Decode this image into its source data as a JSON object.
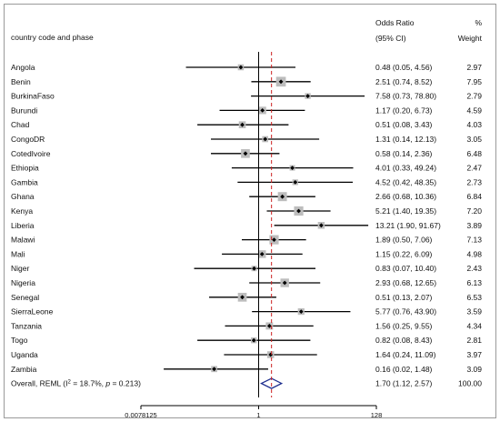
{
  "chart_data": {
    "type": "forest",
    "header": {
      "study_label": "country code and phase",
      "or_label_1": "Odds Ratio",
      "or_label_2": "(95% CI)",
      "weight_label_1": "%",
      "weight_label_2": "Weight"
    },
    "studies": [
      {
        "name": "Angola",
        "or": 0.48,
        "lo": 0.05,
        "hi": 4.56,
        "ci_text": "0.48 (0.05, 4.56)",
        "weight": "2.97"
      },
      {
        "name": "Benin",
        "or": 2.51,
        "lo": 0.74,
        "hi": 8.52,
        "ci_text": "2.51 (0.74, 8.52)",
        "weight": "7.95"
      },
      {
        "name": "BurkinaFaso",
        "or": 7.58,
        "lo": 0.73,
        "hi": 78.8,
        "ci_text": "7.58 (0.73, 78.80)",
        "weight": "2.79"
      },
      {
        "name": "Burundi",
        "or": 1.17,
        "lo": 0.2,
        "hi": 6.73,
        "ci_text": "1.17 (0.20, 6.73)",
        "weight": "4.59"
      },
      {
        "name": "Chad",
        "or": 0.51,
        "lo": 0.08,
        "hi": 3.43,
        "ci_text": "0.51 (0.08, 3.43)",
        "weight": "4.03"
      },
      {
        "name": "CongoDR",
        "or": 1.31,
        "lo": 0.14,
        "hi": 12.13,
        "ci_text": "1.31 (0.14, 12.13)",
        "weight": "3.05"
      },
      {
        "name": "CotedIvoire",
        "or": 0.58,
        "lo": 0.14,
        "hi": 2.36,
        "ci_text": "0.58 (0.14, 2.36)",
        "weight": "6.48"
      },
      {
        "name": "Ethiopia",
        "or": 4.01,
        "lo": 0.33,
        "hi": 49.24,
        "ci_text": "4.01 (0.33, 49.24)",
        "weight": "2.47"
      },
      {
        "name": "Gambia",
        "or": 4.52,
        "lo": 0.42,
        "hi": 48.35,
        "ci_text": "4.52 (0.42, 48.35)",
        "weight": "2.73"
      },
      {
        "name": "Ghana",
        "or": 2.66,
        "lo": 0.68,
        "hi": 10.36,
        "ci_text": "2.66 (0.68, 10.36)",
        "weight": "6.84"
      },
      {
        "name": "Kenya",
        "or": 5.21,
        "lo": 1.4,
        "hi": 19.35,
        "ci_text": "5.21 (1.40, 19.35)",
        "weight": "7.20"
      },
      {
        "name": "Liberia",
        "or": 13.21,
        "lo": 1.9,
        "hi": 91.67,
        "ci_text": "13.21 (1.90, 91.67)",
        "weight": "3.89"
      },
      {
        "name": "Malawi",
        "or": 1.89,
        "lo": 0.5,
        "hi": 7.06,
        "ci_text": "1.89 (0.50, 7.06)",
        "weight": "7.13"
      },
      {
        "name": "Mali",
        "or": 1.15,
        "lo": 0.22,
        "hi": 6.09,
        "ci_text": "1.15 (0.22, 6.09)",
        "weight": "4.98"
      },
      {
        "name": "Niger",
        "or": 0.83,
        "lo": 0.07,
        "hi": 10.4,
        "ci_text": "0.83 (0.07, 10.40)",
        "weight": "2.43"
      },
      {
        "name": "Nigeria",
        "or": 2.93,
        "lo": 0.68,
        "hi": 12.65,
        "ci_text": "2.93 (0.68, 12.65)",
        "weight": "6.13"
      },
      {
        "name": "Senegal",
        "or": 0.51,
        "lo": 0.13,
        "hi": 2.07,
        "ci_text": "0.51 (0.13, 2.07)",
        "weight": "6.53"
      },
      {
        "name": "SierraLeone",
        "or": 5.77,
        "lo": 0.76,
        "hi": 43.9,
        "ci_text": "5.77 (0.76, 43.90)",
        "weight": "3.59"
      },
      {
        "name": "Tanzania",
        "or": 1.56,
        "lo": 0.25,
        "hi": 9.55,
        "ci_text": "1.56 (0.25, 9.55)",
        "weight": "4.34"
      },
      {
        "name": "Togo",
        "or": 0.82,
        "lo": 0.08,
        "hi": 8.43,
        "ci_text": "0.82 (0.08, 8.43)",
        "weight": "2.81"
      },
      {
        "name": "Uganda",
        "or": 1.64,
        "lo": 0.24,
        "hi": 11.09,
        "ci_text": "1.64 (0.24, 11.09)",
        "weight": "3.97"
      },
      {
        "name": "Zambia",
        "or": 0.16,
        "lo": 0.02,
        "hi": 1.48,
        "ci_text": "0.16 (0.02, 1.48)",
        "weight": "3.09"
      }
    ],
    "overall": {
      "label_prefix": "Overall, REML (I",
      "label_sup": "2",
      "label_mid": " = 18.7%, ",
      "label_p": "p",
      "label_suffix": " = 0.213)",
      "or": 1.7,
      "lo": 1.12,
      "hi": 2.57,
      "ci_text": "1.70 (1.12, 2.57)",
      "weight": "100.00"
    },
    "x_axis": {
      "scale": "log2",
      "ticks": [
        {
          "value": 0.0078125,
          "label": "0.0078125"
        },
        {
          "value": 1,
          "label": "1"
        },
        {
          "value": 128,
          "label": "128"
        }
      ]
    },
    "colors": {
      "line": "#000000",
      "box": "#bdbdbd",
      "overall_line": "#cc2020",
      "diamond": "#1f2f8f",
      "frame": "#9a9a9a"
    }
  }
}
